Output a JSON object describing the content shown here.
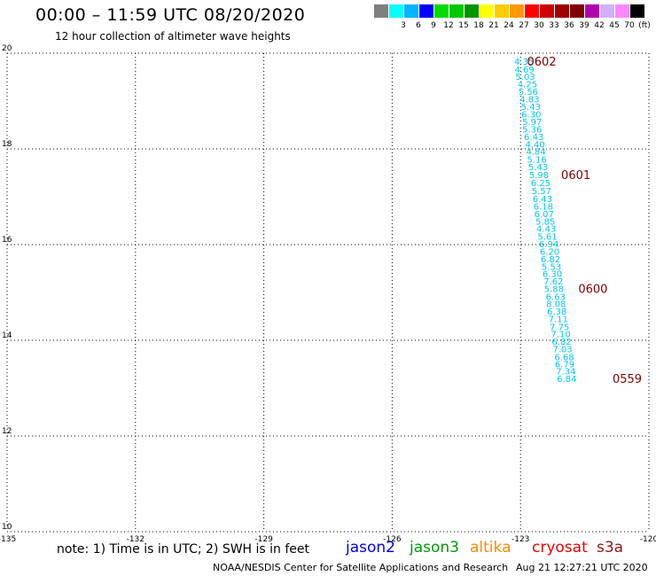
{
  "header": {
    "title": "00:00 – 11:59 UTC 08/20/2020",
    "subtitle": "12 hour collection of altimeter wave heights"
  },
  "legend": {
    "swatches": [
      {
        "label": "",
        "color": "#7f7f7f"
      },
      {
        "label": "3",
        "color": "#00ffff"
      },
      {
        "label": "6",
        "color": "#00b4ff"
      },
      {
        "label": "9",
        "color": "#0000ff"
      },
      {
        "label": "12",
        "color": "#00dc00"
      },
      {
        "label": "15",
        "color": "#00c800"
      },
      {
        "label": "18",
        "color": "#009600"
      },
      {
        "label": "21",
        "color": "#ffff00"
      },
      {
        "label": "24",
        "color": "#ffcc00"
      },
      {
        "label": "27",
        "color": "#ff9900"
      },
      {
        "label": "30",
        "color": "#ff0000"
      },
      {
        "label": "33",
        "color": "#cc0000"
      },
      {
        "label": "36",
        "color": "#a00000"
      },
      {
        "label": "39",
        "color": "#800000"
      },
      {
        "label": "42",
        "color": "#b000b0"
      },
      {
        "label": "45",
        "color": "#d0b0ff"
      },
      {
        "label": "70",
        "color": "#ff88ff"
      },
      {
        "label": "(ft)",
        "color": "#000000"
      }
    ]
  },
  "map": {
    "lon_range": [
      -135,
      -120
    ],
    "lat_range": [
      10,
      20
    ],
    "x_ticks": [
      "-135",
      "-132",
      "-129",
      "-126",
      "-123",
      "-120"
    ],
    "y_ticks": [
      "20",
      "18",
      "16",
      "14",
      "12",
      "10"
    ],
    "gridlines": true,
    "track_color": "#00c8e8",
    "time_color": "#800000",
    "track": [
      {
        "lat": 19.83,
        "lon": -123.15,
        "value": "4.35"
      },
      {
        "lat": 19.67,
        "lon": -123.14,
        "value": "4.69"
      },
      {
        "lat": 19.52,
        "lon": -123.12,
        "value": "5.03"
      },
      {
        "lat": 19.36,
        "lon": -123.07,
        "value": "4.25"
      },
      {
        "lat": 19.2,
        "lon": -123.05,
        "value": "5.56"
      },
      {
        "lat": 19.05,
        "lon": -123.02,
        "value": "4.83"
      },
      {
        "lat": 18.89,
        "lon": -122.99,
        "value": "5.43"
      },
      {
        "lat": 18.73,
        "lon": -122.98,
        "value": "6.30"
      },
      {
        "lat": 18.57,
        "lon": -122.96,
        "value": "5.97"
      },
      {
        "lat": 18.42,
        "lon": -122.96,
        "value": "5.36"
      },
      {
        "lat": 18.26,
        "lon": -122.92,
        "value": "6.43"
      },
      {
        "lat": 18.1,
        "lon": -122.89,
        "value": "4.40"
      },
      {
        "lat": 17.95,
        "lon": -122.87,
        "value": "4.84"
      },
      {
        "lat": 17.79,
        "lon": -122.85,
        "value": "5.16"
      },
      {
        "lat": 17.63,
        "lon": -122.82,
        "value": "5.43"
      },
      {
        "lat": 17.46,
        "lon": -122.8,
        "value": "5.98"
      },
      {
        "lat": 17.3,
        "lon": -122.76,
        "value": "6.25"
      },
      {
        "lat": 17.13,
        "lon": -122.74,
        "value": "5.57"
      },
      {
        "lat": 16.96,
        "lon": -122.72,
        "value": "6.43"
      },
      {
        "lat": 16.81,
        "lon": -122.7,
        "value": "6.18"
      },
      {
        "lat": 16.65,
        "lon": -122.68,
        "value": "6.07"
      },
      {
        "lat": 16.49,
        "lon": -122.65,
        "value": "5.85"
      },
      {
        "lat": 16.34,
        "lon": -122.63,
        "value": "4.43"
      },
      {
        "lat": 16.18,
        "lon": -122.6,
        "value": "5.61"
      },
      {
        "lat": 16.02,
        "lon": -122.57,
        "value": "6.94"
      },
      {
        "lat": 15.86,
        "lon": -122.55,
        "value": "6.20"
      },
      {
        "lat": 15.7,
        "lon": -122.53,
        "value": "6.82"
      },
      {
        "lat": 15.55,
        "lon": -122.51,
        "value": "5.53"
      },
      {
        "lat": 15.4,
        "lon": -122.49,
        "value": "6.30"
      },
      {
        "lat": 15.24,
        "lon": -122.46,
        "value": "7.62"
      },
      {
        "lat": 15.08,
        "lon": -122.45,
        "value": "5.88"
      },
      {
        "lat": 14.92,
        "lon": -122.41,
        "value": "6.63"
      },
      {
        "lat": 14.77,
        "lon": -122.4,
        "value": "8.08"
      },
      {
        "lat": 14.61,
        "lon": -122.38,
        "value": "6.38"
      },
      {
        "lat": 14.45,
        "lon": -122.35,
        "value": "7.11"
      },
      {
        "lat": 14.29,
        "lon": -122.32,
        "value": "7.75"
      },
      {
        "lat": 14.14,
        "lon": -122.29,
        "value": "7.10"
      },
      {
        "lat": 13.98,
        "lon": -122.27,
        "value": "6.82"
      },
      {
        "lat": 13.82,
        "lon": -122.25,
        "value": "7.03"
      },
      {
        "lat": 13.66,
        "lon": -122.21,
        "value": "6.68"
      },
      {
        "lat": 13.51,
        "lon": -122.2,
        "value": "6.79"
      },
      {
        "lat": 13.36,
        "lon": -122.17,
        "value": "7.34"
      },
      {
        "lat": 13.2,
        "lon": -122.15,
        "value": "6.84"
      }
    ],
    "time_marks": [
      {
        "lat": 19.83,
        "lon": -122.85,
        "label": "0602"
      },
      {
        "lat": 17.46,
        "lon": -122.05,
        "label": "0601"
      },
      {
        "lat": 15.08,
        "lon": -121.65,
        "label": "0600"
      },
      {
        "lat": 13.2,
        "lon": -120.85,
        "label": "0559"
      }
    ]
  },
  "footer": {
    "note": "note: 1) Time is in UTC; 2) SWH is in feet",
    "satellites": [
      {
        "name": "jason2",
        "color": "#0000ee"
      },
      {
        "name": "jason3",
        "color": "#009900"
      },
      {
        "name": "altika",
        "color": "#ff8800"
      },
      {
        "name": "cryosat",
        "color": "#ee0000"
      },
      {
        "name": "s3a",
        "color": "#8b1a1a"
      }
    ],
    "credit": "NOAA/NESDIS Center for Satellite Applications and Research",
    "timestamp": "Aug 21 12:27:21 UTC 2020"
  }
}
